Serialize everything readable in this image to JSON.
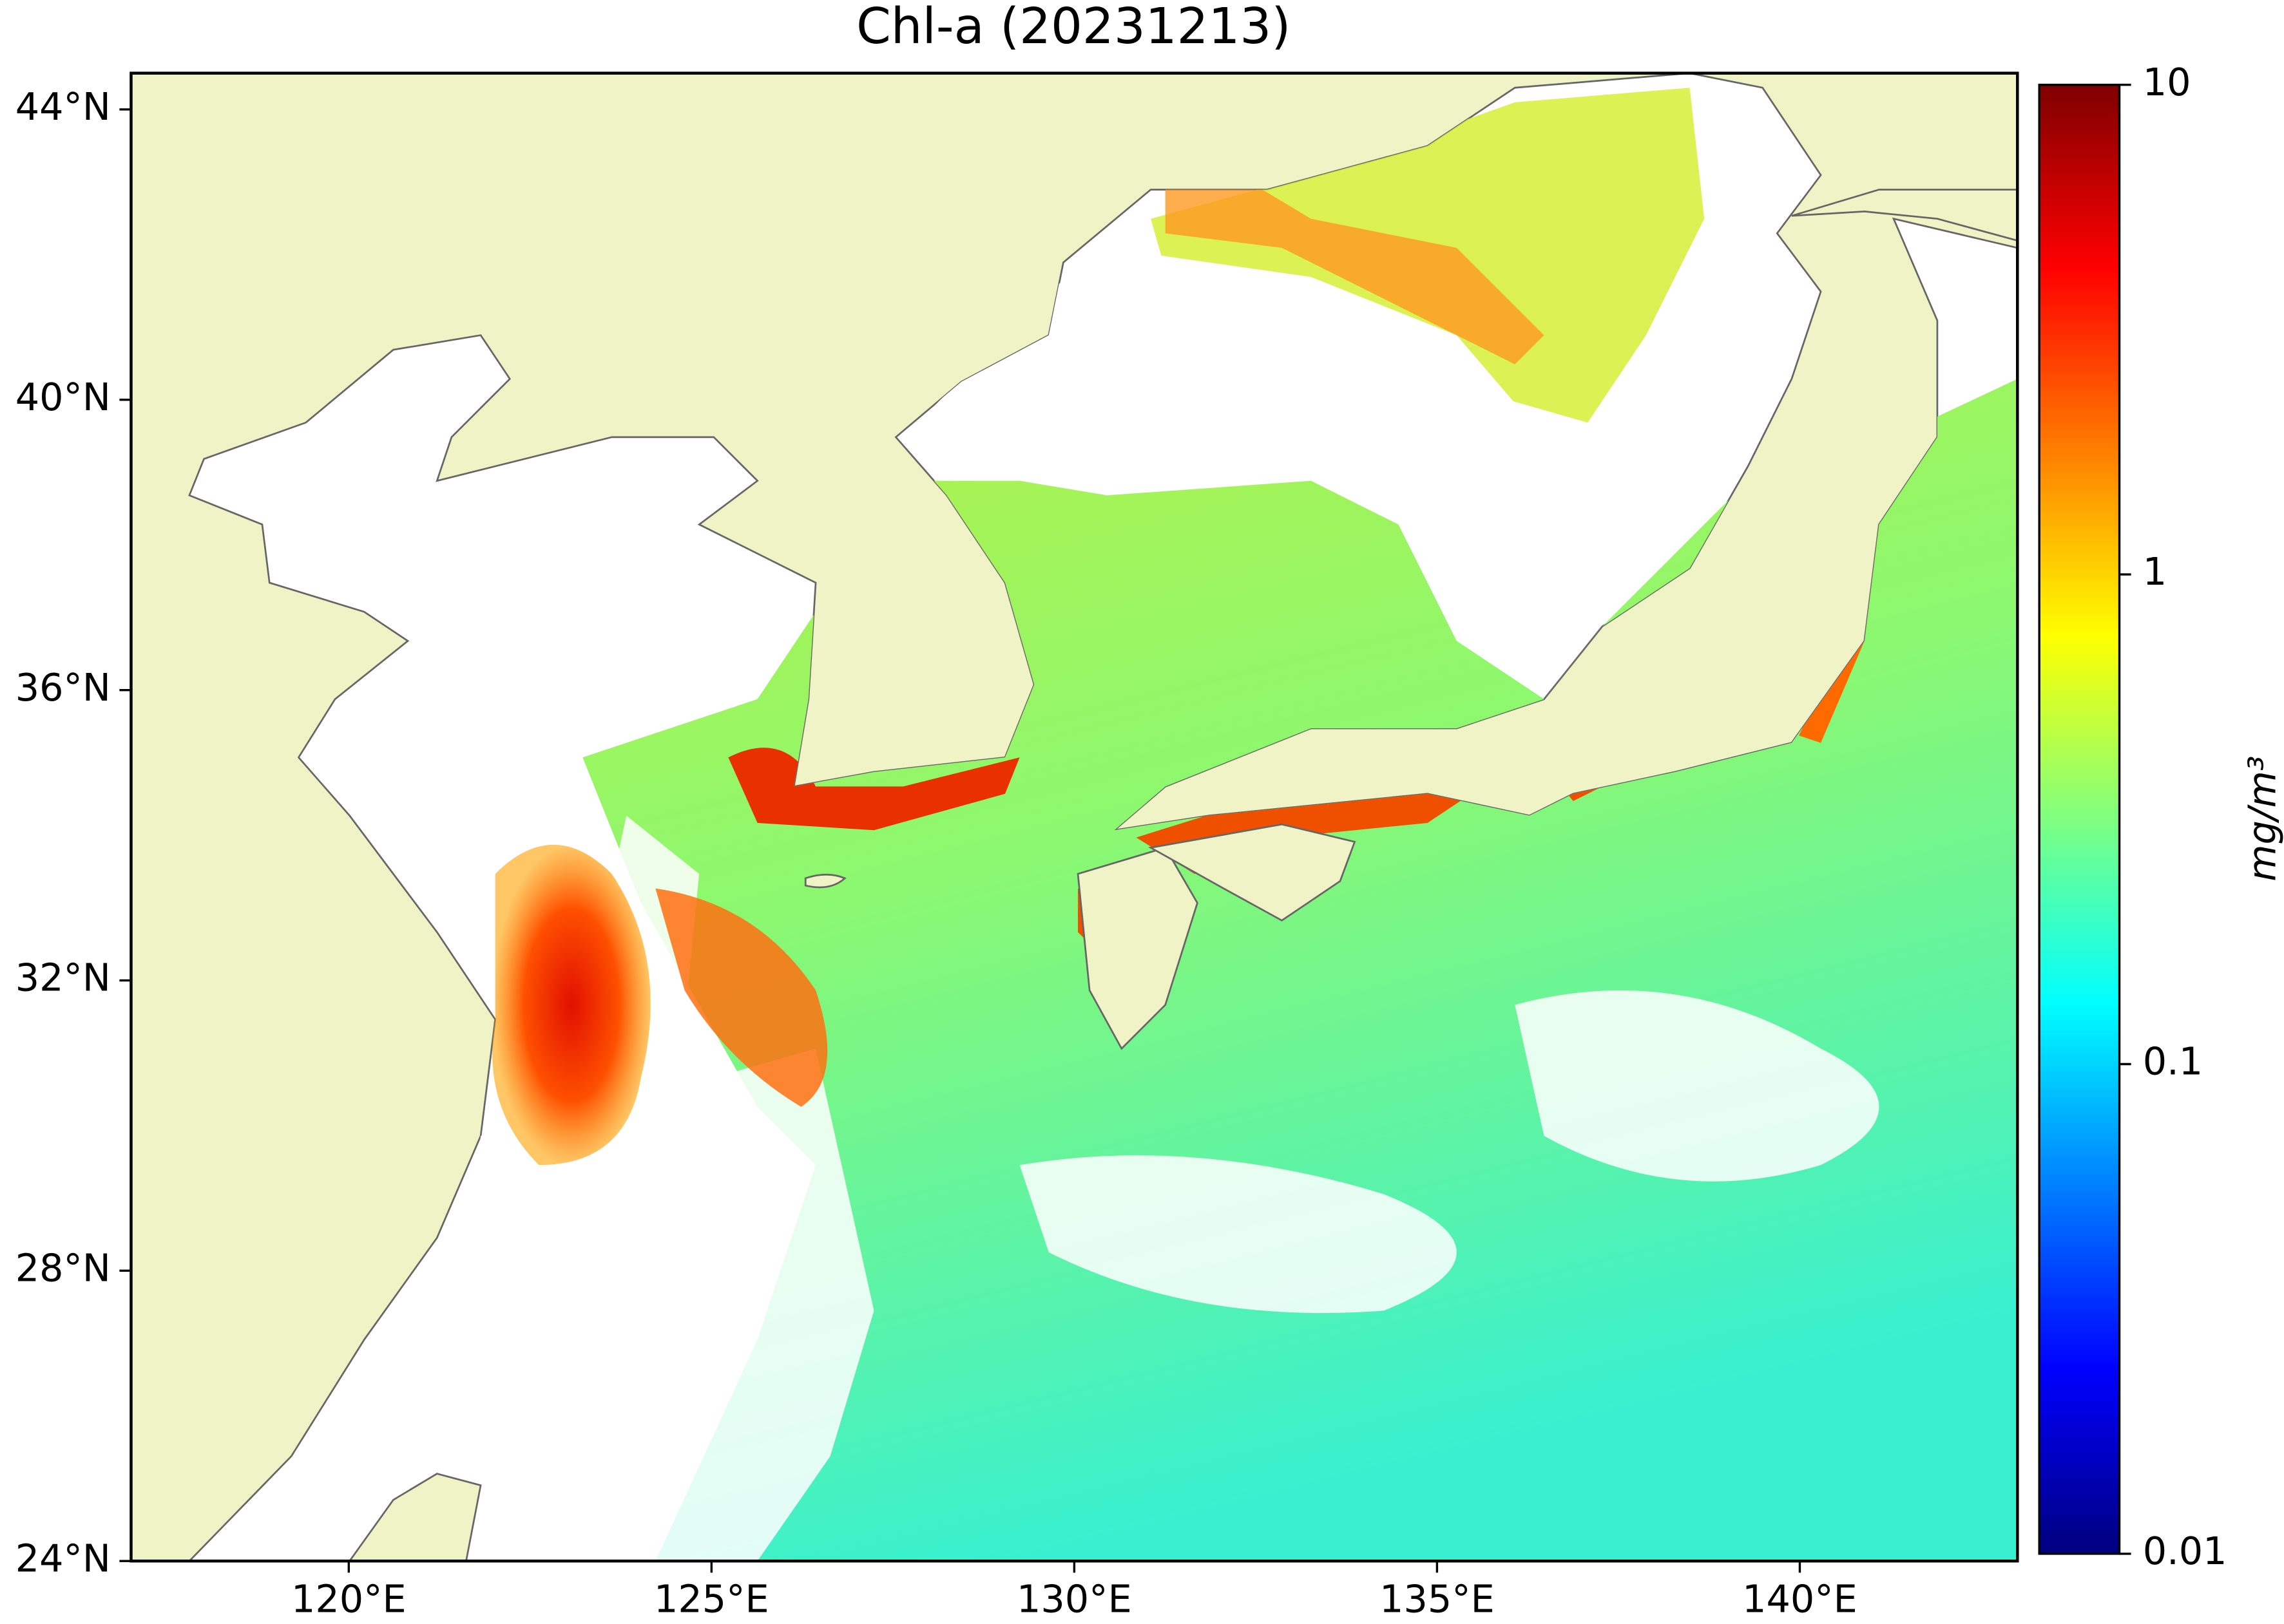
{
  "chart_data": {
    "type": "map",
    "title": "Chl-a (20231213)",
    "xlim": [
      117,
      143
    ],
    "ylim": [
      24,
      44.5
    ],
    "xticks": [
      {
        "value": 120,
        "label": "120°E"
      },
      {
        "value": 125,
        "label": "125°E"
      },
      {
        "value": 130,
        "label": "130°E"
      },
      {
        "value": 135,
        "label": "135°E"
      },
      {
        "value": 140,
        "label": "140°E"
      }
    ],
    "yticks": [
      {
        "value": 24,
        "label": "24°N"
      },
      {
        "value": 28,
        "label": "28°N"
      },
      {
        "value": 32,
        "label": "32°N"
      },
      {
        "value": 36,
        "label": "36°N"
      },
      {
        "value": 40,
        "label": "40°N"
      },
      {
        "value": 44,
        "label": "44°N"
      }
    ],
    "land_color": "#eff3c6",
    "colorbar": {
      "label": "mg/m³",
      "scale": "log",
      "lim": [
        0.01,
        10
      ],
      "ticks": [
        0.01,
        0.1,
        1,
        10
      ],
      "colormap": [
        "#00007f",
        "#0000ff",
        "#007fff",
        "#00ffff",
        "#7fff7f",
        "#ffff00",
        "#ff7f00",
        "#ff0000",
        "#7f0000"
      ]
    }
  }
}
